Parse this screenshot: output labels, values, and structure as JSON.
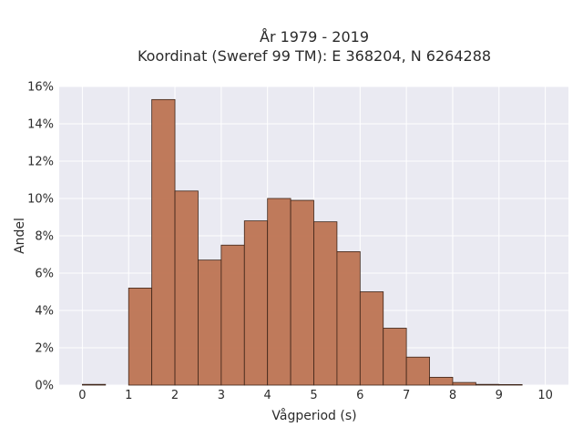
{
  "chart_data": {
    "type": "bar",
    "title_line1": "År 1979 - 2019",
    "title_line2": "Koordinat (Sweref 99 TM): E 368204, N 6264288",
    "xlabel": "Vågperiod (s)",
    "ylabel": "Andel",
    "xlim": [
      -0.5,
      10.5
    ],
    "ylim": [
      0,
      16
    ],
    "xticks": [
      "0",
      "1",
      "2",
      "3",
      "4",
      "5",
      "6",
      "7",
      "8",
      "9",
      "10"
    ],
    "yticks": [
      "0%",
      "2%",
      "4%",
      "6%",
      "8%",
      "10%",
      "12%",
      "14%",
      "16%"
    ],
    "bin_width": 0.5,
    "bins": [
      {
        "start": 0.0,
        "value": 0.04
      },
      {
        "start": 0.5,
        "value": 0.0
      },
      {
        "start": 1.0,
        "value": 5.2
      },
      {
        "start": 1.5,
        "value": 15.3
      },
      {
        "start": 2.0,
        "value": 10.4
      },
      {
        "start": 2.5,
        "value": 6.7
      },
      {
        "start": 3.0,
        "value": 7.5
      },
      {
        "start": 3.5,
        "value": 8.8
      },
      {
        "start": 4.0,
        "value": 10.0
      },
      {
        "start": 4.5,
        "value": 9.9
      },
      {
        "start": 5.0,
        "value": 8.75
      },
      {
        "start": 5.5,
        "value": 7.15
      },
      {
        "start": 6.0,
        "value": 5.0
      },
      {
        "start": 6.5,
        "value": 3.05
      },
      {
        "start": 7.0,
        "value": 1.5
      },
      {
        "start": 7.5,
        "value": 0.42
      },
      {
        "start": 8.0,
        "value": 0.14
      },
      {
        "start": 8.5,
        "value": 0.04
      },
      {
        "start": 9.0,
        "value": 0.03
      },
      {
        "start": 9.5,
        "value": 0.0
      }
    ],
    "grid": true,
    "colors": {
      "bar_fill": "#bd7452",
      "bar_edge": "#3d2418",
      "plot_bg": "#eaeaf2",
      "grid": "#ffffff"
    }
  }
}
